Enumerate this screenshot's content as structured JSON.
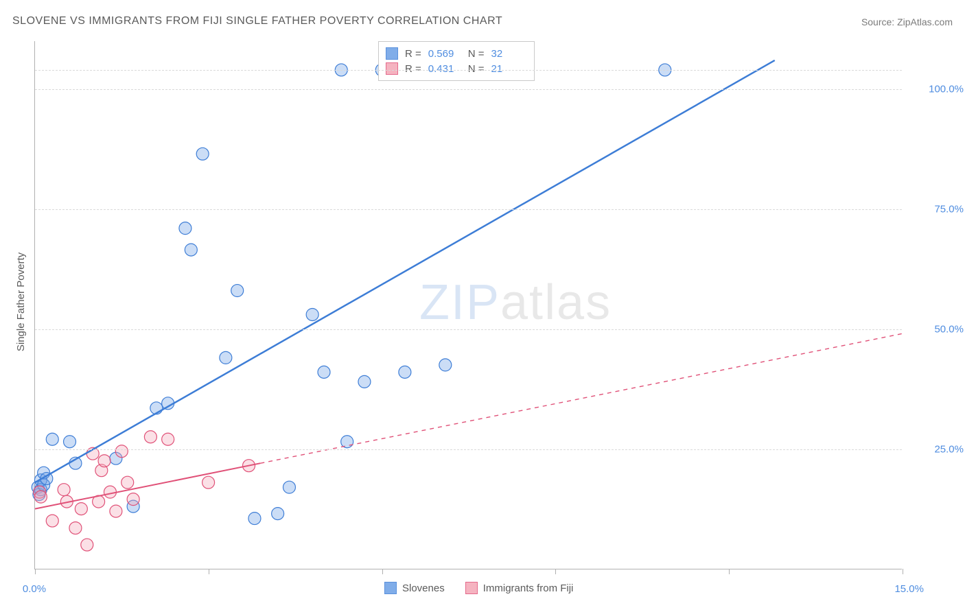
{
  "title": "SLOVENE VS IMMIGRANTS FROM FIJI SINGLE FATHER POVERTY CORRELATION CHART",
  "source": "Source: ZipAtlas.com",
  "y_axis_label": "Single Father Poverty",
  "watermark": {
    "part1": "ZIP",
    "part2": "atlas"
  },
  "chart": {
    "type": "scatter",
    "background_color": "#ffffff",
    "grid_color": "#d9d9d9",
    "axis_color": "#b0b0b0",
    "tick_label_color": "#4f8de0",
    "tick_fontsize": 15,
    "title_fontsize": 16,
    "xlim": [
      0,
      15
    ],
    "ylim": [
      0,
      110
    ],
    "y_ticks": [
      {
        "value": 25,
        "label": "25.0%"
      },
      {
        "value": 50,
        "label": "50.0%"
      },
      {
        "value": 75,
        "label": "75.0%"
      },
      {
        "value": 100,
        "label": "100.0%"
      }
    ],
    "x_ticks": [
      0,
      3,
      6,
      9,
      12,
      15
    ],
    "x_tick_labels": {
      "start": "0.0%",
      "end": "15.0%"
    },
    "marker_radius": 9,
    "marker_fill_opacity": 0.35,
    "marker_stroke_width": 1.2,
    "series": [
      {
        "key": "slovenes",
        "name": "Slovenes",
        "color": "#6b9fe6",
        "stroke": "#3d7dd6",
        "line_width": 2.5,
        "line_dash": "none",
        "reg_line": {
          "x1": 0.0,
          "y1": 18.0,
          "x2": 12.8,
          "y2": 106.0
        },
        "reg_extend": null,
        "R": "0.569",
        "N": "32",
        "points": [
          [
            0.05,
            17.0
          ],
          [
            0.07,
            15.5
          ],
          [
            0.1,
            16.5
          ],
          [
            0.1,
            18.5
          ],
          [
            0.15,
            17.5
          ],
          [
            0.15,
            20.0
          ],
          [
            0.2,
            18.8
          ],
          [
            0.6,
            26.5
          ],
          [
            0.3,
            27.0
          ],
          [
            0.7,
            22.0
          ],
          [
            1.7,
            13.0
          ],
          [
            1.4,
            23.0
          ],
          [
            2.1,
            33.5
          ],
          [
            2.3,
            34.5
          ],
          [
            2.6,
            71.0
          ],
          [
            2.7,
            66.5
          ],
          [
            2.9,
            86.5
          ],
          [
            3.3,
            44.0
          ],
          [
            3.5,
            58.0
          ],
          [
            3.8,
            10.5
          ],
          [
            4.2,
            11.5
          ],
          [
            4.4,
            17.0
          ],
          [
            4.8,
            53.0
          ],
          [
            5.0,
            41.0
          ],
          [
            5.3,
            104.0
          ],
          [
            5.4,
            26.5
          ],
          [
            5.7,
            39.0
          ],
          [
            6.0,
            104.0
          ],
          [
            6.4,
            41.0
          ],
          [
            7.1,
            42.5
          ],
          [
            7.6,
            104.0
          ],
          [
            10.9,
            104.0
          ]
        ]
      },
      {
        "key": "fiji",
        "name": "Immigrants from Fiji",
        "color": "#f4a6b6",
        "stroke": "#e05077",
        "line_width": 2,
        "line_dash": "6 6",
        "reg_line": {
          "x1": 0.0,
          "y1": 12.5,
          "x2": 3.9,
          "y2": 22.0
        },
        "reg_extend": {
          "x1": 3.9,
          "y1": 22.0,
          "x2": 15.0,
          "y2": 49.0
        },
        "R": "0.431",
        "N": "21",
        "points": [
          [
            0.08,
            16.0
          ],
          [
            0.1,
            15.0
          ],
          [
            0.3,
            10.0
          ],
          [
            0.5,
            16.5
          ],
          [
            0.55,
            14.0
          ],
          [
            0.7,
            8.5
          ],
          [
            0.8,
            12.5
          ],
          [
            0.9,
            5.0
          ],
          [
            1.0,
            24.0
          ],
          [
            1.1,
            14.0
          ],
          [
            1.15,
            20.5
          ],
          [
            1.2,
            22.5
          ],
          [
            1.3,
            16.0
          ],
          [
            1.4,
            12.0
          ],
          [
            1.5,
            24.5
          ],
          [
            1.6,
            18.0
          ],
          [
            1.7,
            14.5
          ],
          [
            2.0,
            27.5
          ],
          [
            2.3,
            27.0
          ],
          [
            3.0,
            18.0
          ],
          [
            3.7,
            21.5
          ]
        ]
      }
    ]
  },
  "stats_legend": {
    "labels": {
      "R": "R =",
      "N": "N ="
    }
  },
  "bottom_legend": {
    "items": [
      "Slovenes",
      "Immigrants from Fiji"
    ]
  }
}
